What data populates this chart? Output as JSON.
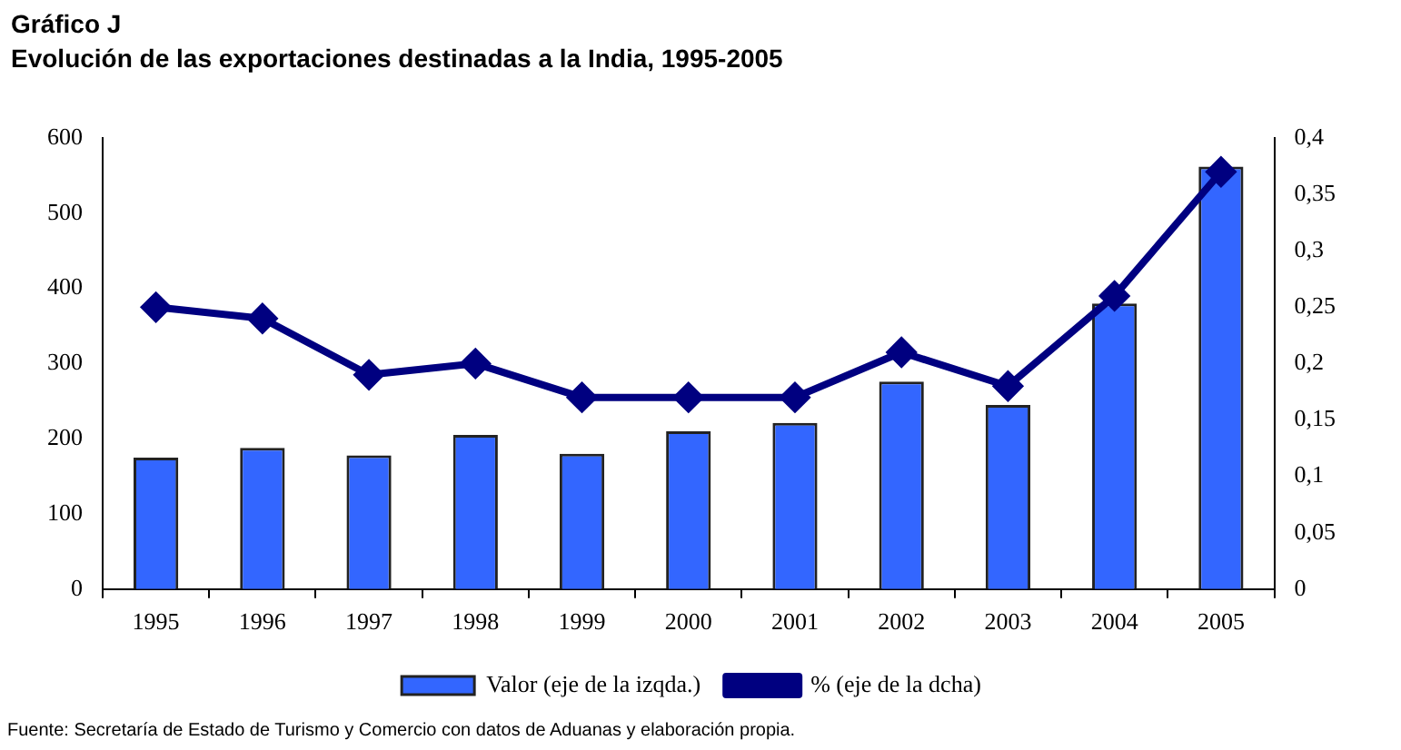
{
  "chart_data": {
    "type": "bar",
    "title": "Gráfico J",
    "subtitle": "Evolución de las exportaciones destinadas a la India, 1995-2005",
    "categories": [
      "1995",
      "1996",
      "1997",
      "1998",
      "1999",
      "2000",
      "2001",
      "2002",
      "2003",
      "2004",
      "2005"
    ],
    "series": [
      {
        "name": "Valor (eje de la izqda.)",
        "color": "#3366ff",
        "values": [
          175,
          188,
          178,
          205,
          180,
          210,
          221,
          276,
          245,
          380,
          562
        ]
      },
      {
        "name": "% (eje de la dcha)",
        "type": "line",
        "axis": "y2",
        "color": "#000080",
        "values": [
          0.25,
          0.24,
          0.19,
          0.2,
          0.17,
          0.17,
          0.17,
          0.21,
          0.18,
          0.26,
          0.37
        ]
      }
    ],
    "ylim": [
      0,
      600
    ],
    "yticks": [
      0,
      100,
      200,
      300,
      400,
      500,
      600
    ],
    "y2lim": [
      0,
      0.4
    ],
    "y2ticks": [
      0,
      {
        "value": 0.05,
        "label": "0,05"
      },
      {
        "value": 0.1,
        "label": "0,1"
      },
      {
        "value": 0.15,
        "label": "0,15"
      },
      {
        "value": 0.2,
        "label": "0,2"
      },
      {
        "value": 0.25,
        "label": "0,25"
      },
      {
        "value": 0.3,
        "label": "0,3"
      },
      {
        "value": 0.35,
        "label": "0,35"
      },
      {
        "value": 0.4,
        "label": "0,4"
      }
    ],
    "marker": "diamond",
    "legend": "bottom",
    "grid": false,
    "annotations": [
      "Fuente: Secretaría de Estado de Turismo y Comercio con datos de Aduanas y elaboración propia."
    ]
  }
}
